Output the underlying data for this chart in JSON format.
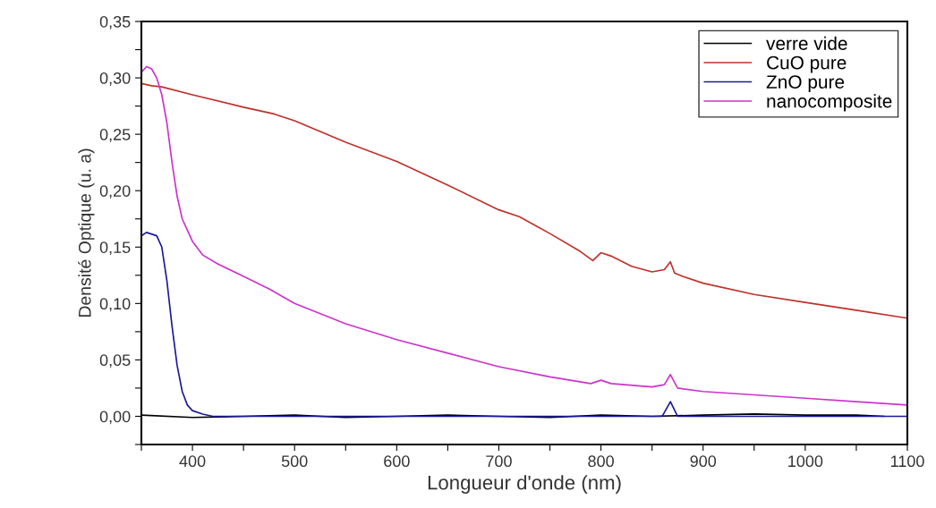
{
  "chart_data": {
    "type": "line",
    "xlabel": "Longueur d'onde (nm)",
    "ylabel": "Densité Optique (u. a)",
    "xlim": [
      350,
      1100
    ],
    "ylim": [
      -0.025,
      0.35
    ],
    "xticks": [
      {
        "value": 350,
        "label": null
      },
      400,
      {
        "value": 450,
        "label": null
      },
      500,
      {
        "value": 550,
        "label": null
      },
      600,
      {
        "value": 650,
        "label": null
      },
      700,
      {
        "value": 750,
        "label": null
      },
      800,
      {
        "value": 850,
        "label": null
      },
      900,
      {
        "value": 950,
        "label": null
      },
      1000,
      {
        "value": 1050,
        "label": null
      },
      1100
    ],
    "yticks": [
      {
        "value": -0.025,
        "label": null
      },
      {
        "value": 0,
        "label": "0,00"
      },
      {
        "value": 0.025,
        "label": null
      },
      {
        "value": 0.05,
        "label": "0,05"
      },
      {
        "value": 0.075,
        "label": null
      },
      {
        "value": 0.1,
        "label": "0,10"
      },
      {
        "value": 0.125,
        "label": null
      },
      {
        "value": 0.15,
        "label": "0,15"
      },
      {
        "value": 0.175,
        "label": null
      },
      {
        "value": 0.2,
        "label": "0,20"
      },
      {
        "value": 0.225,
        "label": null
      },
      {
        "value": 0.25,
        "label": "0,25"
      },
      {
        "value": 0.275,
        "label": null
      },
      {
        "value": 0.3,
        "label": "0,30"
      },
      {
        "value": 0.325,
        "label": null
      },
      {
        "value": 0.35,
        "label": "0,35"
      }
    ],
    "grid": false,
    "legend": "top right",
    "marker": "none",
    "line_style": "solid",
    "series": [
      {
        "name": "verre vide",
        "color": "#000000",
        "x": [
          350,
          400,
          450,
          500,
          550,
          600,
          650,
          700,
          750,
          800,
          850,
          900,
          950,
          1000,
          1050,
          1077
        ],
        "values": [
          0.001,
          -0.001,
          0.0,
          0.001,
          -0.001,
          0.0,
          0.001,
          0.0,
          -0.001,
          0.001,
          0.0,
          0.001,
          0.002,
          0.001,
          0.001,
          0.0
        ]
      },
      {
        "name": "CuO pure",
        "color": "#c0302a",
        "x": [
          350,
          360,
          370,
          400,
          450,
          480,
          500,
          550,
          600,
          650,
          700,
          720,
          750,
          780,
          792,
          800,
          810,
          830,
          850,
          862,
          868,
          872,
          880,
          900,
          950,
          1000,
          1050,
          1100
        ],
        "values": [
          0.295,
          0.293,
          0.292,
          0.285,
          0.274,
          0.268,
          0.262,
          0.243,
          0.226,
          0.205,
          0.183,
          0.177,
          0.162,
          0.146,
          0.138,
          0.145,
          0.142,
          0.133,
          0.128,
          0.13,
          0.137,
          0.127,
          0.124,
          0.118,
          0.108,
          0.101,
          0.094,
          0.087
        ]
      },
      {
        "name": "ZnO pure",
        "color": "#1a1a9a",
        "x": [
          350,
          355,
          365,
          370,
          375,
          380,
          385,
          390,
          395,
          400,
          410,
          420,
          500,
          600,
          700,
          800,
          860,
          868,
          875,
          1000,
          1100
        ],
        "values": [
          0.16,
          0.163,
          0.16,
          0.15,
          0.12,
          0.08,
          0.045,
          0.022,
          0.01,
          0.005,
          0.002,
          0.0,
          0.0,
          0.0,
          0.0,
          0.0,
          0.0,
          0.013,
          0.0,
          0.0,
          0.0
        ]
      },
      {
        "name": "nanocomposite",
        "color": "#cc33cc",
        "x": [
          350,
          355,
          360,
          365,
          370,
          375,
          380,
          385,
          390,
          400,
          410,
          425,
          450,
          475,
          500,
          550,
          600,
          650,
          700,
          750,
          790,
          800,
          810,
          850,
          862,
          868,
          875,
          900,
          950,
          1000,
          1050,
          1100
        ],
        "values": [
          0.305,
          0.31,
          0.308,
          0.3,
          0.285,
          0.26,
          0.225,
          0.195,
          0.175,
          0.155,
          0.143,
          0.135,
          0.124,
          0.113,
          0.1,
          0.082,
          0.068,
          0.056,
          0.044,
          0.035,
          0.029,
          0.032,
          0.029,
          0.026,
          0.028,
          0.037,
          0.025,
          0.022,
          0.019,
          0.016,
          0.013,
          0.01
        ]
      }
    ]
  }
}
